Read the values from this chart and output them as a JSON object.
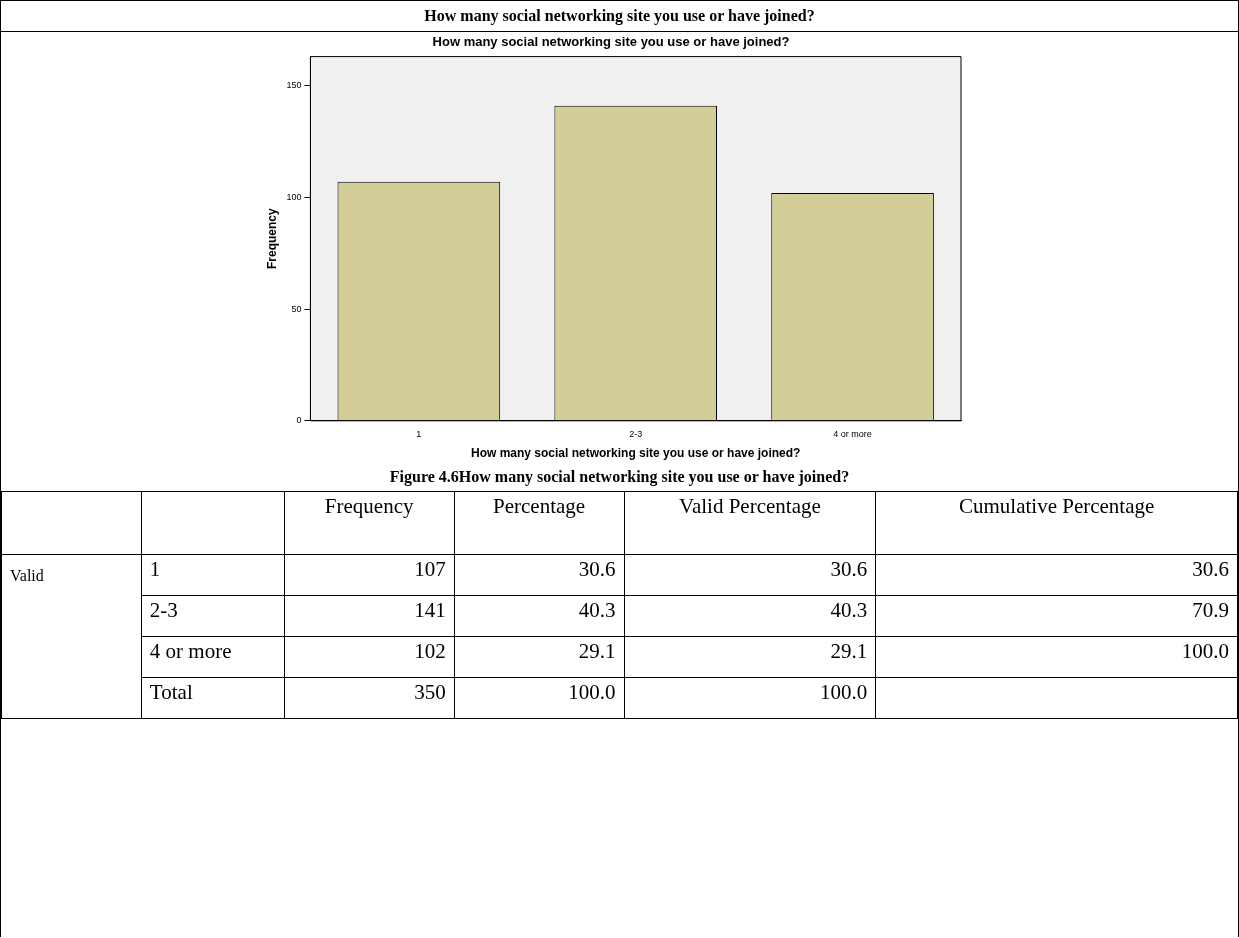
{
  "chart_data": [
    {
      "type": "bar",
      "title": "How many social networking site you use or have joined?",
      "xlabel": "How many social networking site you use or have joined?",
      "ylabel": "Frequency",
      "categories": [
        "1",
        "2-3",
        "4 or more"
      ],
      "values": [
        107,
        141,
        102
      ],
      "color": "#d3ce97",
      "ylim": [
        0,
        163
      ],
      "yticks": [
        0,
        50,
        100,
        150
      ],
      "grid": false,
      "legend": false,
      "annotations": [
        "How many social networking site you use or have joined?",
        "Figure 4.6How many social networking site you use or have joined?"
      ]
    },
    {
      "type": "other",
      "ylabel": "Valid",
      "categories": [
        "Frequency",
        "Percentage",
        "Valid Percentage",
        "Cumulative Percentage"
      ],
      "y_categories": [
        "1",
        "2-3",
        "4 or more",
        "Total"
      ],
      "cell_labels": [
        [
          "107",
          "30.6",
          "30.6",
          "30.6"
        ],
        [
          "141",
          "40.3",
          "40.3",
          "70.9"
        ],
        [
          "102",
          "29.1",
          "29.1",
          "100.0"
        ],
        [
          "350",
          "100.0",
          "100.0",
          null
        ]
      ]
    }
  ]
}
